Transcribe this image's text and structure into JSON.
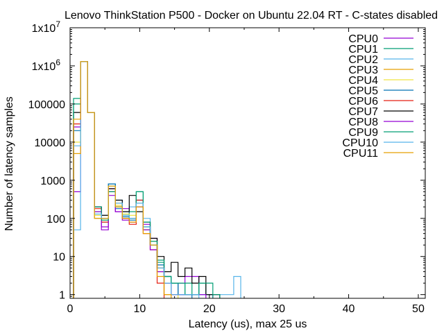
{
  "chart_data": {
    "type": "line",
    "step": true,
    "title": "Lenovo ThinkStation P500 - Docker on Ubuntu 22.04 RT - C-states disabled",
    "xlabel": "Latency (us), max 25 us",
    "ylabel": "Number of latency samples",
    "xlim": [
      0,
      51
    ],
    "ylim": [
      0.8,
      10000000
    ],
    "yscale": "log",
    "grid": false,
    "legend": "top-right",
    "x_ticks": [
      {
        "value": 0,
        "label": "0"
      },
      {
        "value": 10,
        "label": "10"
      },
      {
        "value": 20,
        "label": "20"
      },
      {
        "value": 30,
        "label": "30"
      },
      {
        "value": 40,
        "label": "40"
      },
      {
        "value": 50,
        "label": "50"
      }
    ],
    "y_ticks": [
      {
        "value": 1,
        "label": "1"
      },
      {
        "value": 10,
        "label": "10"
      },
      {
        "value": 100,
        "label": "100"
      },
      {
        "value": 1000,
        "label": "1000"
      },
      {
        "value": 10000,
        "label": "10000"
      },
      {
        "value": 100000,
        "label": "100000"
      },
      {
        "value": 1000000,
        "label": "1x10",
        "exp": "6"
      },
      {
        "value": 10000000,
        "label": "1x10",
        "exp": "7"
      }
    ],
    "series": [
      {
        "name": "CPU0",
        "color": "#9400d3",
        "x": [
          1,
          2,
          3,
          4,
          5,
          6,
          7,
          8,
          9,
          10,
          11,
          12,
          13,
          14,
          15,
          16,
          17,
          18,
          19,
          20
        ],
        "values": [
          500,
          1300000,
          60000,
          200,
          50,
          600,
          150,
          180,
          100,
          200,
          70,
          30,
          5,
          2,
          1,
          2,
          3,
          3,
          1,
          1
        ]
      },
      {
        "name": "CPU1",
        "color": "#009e73",
        "x": [
          1,
          2,
          3,
          4,
          5,
          6,
          7,
          8,
          9,
          10,
          11,
          12,
          13,
          14,
          15,
          16,
          17,
          18,
          19,
          20
        ],
        "values": [
          100000,
          1300000,
          60000,
          150,
          80,
          500,
          200,
          100,
          150,
          500,
          50,
          20,
          7,
          3,
          2,
          1,
          2,
          1,
          2,
          1
        ]
      },
      {
        "name": "CPU2",
        "color": "#56b4e9",
        "x": [
          1,
          2,
          3,
          4,
          5,
          6,
          7,
          8,
          9,
          10,
          11,
          12,
          13,
          14,
          15,
          16,
          17,
          18,
          19,
          20,
          21,
          22,
          23,
          24
        ],
        "values": [
          50,
          1300000,
          60000,
          100,
          120,
          800,
          300,
          150,
          200,
          300,
          100,
          20,
          5,
          2,
          1,
          1,
          1,
          1,
          1,
          1,
          1,
          1,
          1,
          3
        ]
      },
      {
        "name": "CPU3",
        "color": "#e69f00",
        "x": [
          1,
          2,
          3,
          4,
          5,
          6,
          7,
          8,
          9,
          10,
          11,
          12,
          13,
          14
        ],
        "values": [
          5000,
          1300000,
          60000,
          100,
          100,
          700,
          250,
          100,
          80,
          200,
          50,
          20,
          5,
          1
        ]
      },
      {
        "name": "CPU4",
        "color": "#f0e442",
        "x": [
          1,
          2,
          3,
          4,
          5,
          6,
          7,
          8,
          9,
          10,
          11,
          12,
          13,
          14,
          15
        ],
        "values": [
          10000,
          1300000,
          60000,
          120,
          90,
          700,
          220,
          130,
          120,
          250,
          60,
          25,
          4,
          2,
          1
        ]
      },
      {
        "name": "CPU5",
        "color": "#0072b2",
        "x": [
          1,
          2,
          3,
          4,
          5,
          6,
          7,
          8,
          9,
          10,
          11,
          12,
          13,
          14,
          15,
          16,
          17
        ],
        "values": [
          20000,
          1300000,
          60000,
          200,
          100,
          800,
          180,
          110,
          90,
          300,
          60,
          20,
          6,
          3,
          2,
          1,
          1
        ]
      },
      {
        "name": "CPU6",
        "color": "#e51e10",
        "x": [
          1,
          2,
          3,
          4,
          5,
          6,
          7,
          8,
          9,
          10,
          11,
          12,
          13
        ],
        "values": [
          30000,
          1300000,
          60000,
          180,
          80,
          500,
          200,
          100,
          70,
          300,
          40,
          15,
          2
        ]
      },
      {
        "name": "CPU7",
        "color": "#000000",
        "x": [
          1,
          2,
          3,
          4,
          5,
          6,
          7,
          8,
          9,
          10,
          11,
          12,
          13,
          14,
          15,
          16,
          17,
          18,
          19,
          20,
          21
        ],
        "values": [
          60000,
          1300000,
          60000,
          200,
          120,
          600,
          300,
          150,
          400,
          150,
          80,
          30,
          10,
          4,
          7,
          3,
          5,
          2,
          3,
          1,
          1
        ]
      },
      {
        "name": "CPU8",
        "color": "#9400d3",
        "x": [
          1,
          2,
          3,
          4,
          5,
          6,
          7,
          8,
          9,
          10,
          11,
          12,
          13,
          14,
          15,
          16,
          17,
          18,
          19
        ],
        "values": [
          25000,
          1300000,
          60000,
          150,
          60,
          400,
          150,
          90,
          80,
          200,
          50,
          15,
          4,
          2,
          1,
          1,
          1,
          1,
          1
        ]
      },
      {
        "name": "CPU9",
        "color": "#009e73",
        "x": [
          1,
          2,
          3,
          4,
          5,
          6,
          7,
          8,
          9,
          10,
          11,
          12,
          13,
          14,
          15,
          16,
          17,
          18,
          19,
          20,
          21
        ],
        "values": [
          140000,
          1300000,
          60000,
          200,
          90,
          500,
          200,
          120,
          100,
          500,
          80,
          25,
          8,
          3,
          2,
          2,
          1,
          1,
          2,
          2,
          1
        ]
      },
      {
        "name": "CPU10",
        "color": "#56b4e9",
        "x": [
          1,
          2,
          3,
          4,
          5,
          6,
          7,
          8,
          9,
          10,
          11,
          12,
          13,
          14,
          15,
          16,
          17,
          18
        ],
        "values": [
          8000,
          1300000,
          60000,
          130,
          100,
          700,
          250,
          120,
          100,
          250,
          60,
          20,
          5,
          2,
          1,
          1,
          1,
          1
        ]
      },
      {
        "name": "CPU11",
        "color": "#e69f00",
        "x": [
          1,
          2,
          3,
          4,
          5,
          6,
          7,
          8,
          9,
          10,
          11,
          12,
          13,
          14
        ],
        "values": [
          40000,
          1300000,
          60000,
          100,
          100,
          700,
          200,
          100,
          80,
          200,
          40,
          20,
          3,
          1
        ]
      }
    ]
  }
}
